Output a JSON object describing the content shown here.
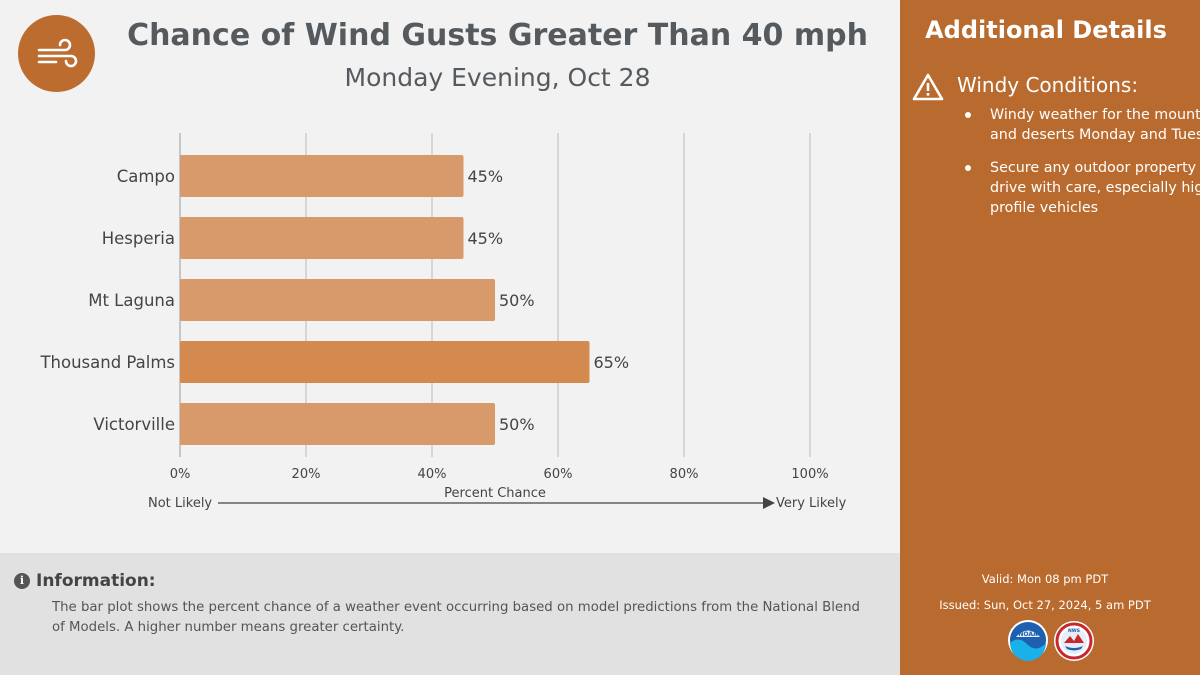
{
  "header": {
    "title": "Chance of Wind Gusts Greater Than 40 mph",
    "subtitle": "Monday Evening, Oct 28",
    "icon": "wind-icon"
  },
  "chart_data": {
    "type": "bar",
    "orientation": "horizontal",
    "categories": [
      "Campo",
      "Hesperia",
      "Mt Laguna",
      "Thousand Palms",
      "Victorville"
    ],
    "values": [
      45,
      45,
      50,
      65,
      50
    ],
    "value_labels": [
      "45%",
      "45%",
      "50%",
      "65%",
      "50%"
    ],
    "xlim": [
      0,
      100
    ],
    "xticks": [
      0,
      20,
      40,
      60,
      80,
      100
    ],
    "xtick_labels": [
      "0%",
      "20%",
      "40%",
      "60%",
      "80%",
      "100%"
    ],
    "xlabel": "Percent Chance",
    "scale_left": "Not Likely",
    "scale_right": "Very Likely",
    "grid": true,
    "bar_color": "#d89a6a",
    "highlight_color": "#d4894f",
    "highlight_index": 3
  },
  "info": {
    "heading": "Information:",
    "body": "The bar plot shows the percent chance of a weather event occurring based on model predictions from the National Blend of Models. A higher number means greater certainty."
  },
  "sidebar": {
    "title": "Additional Details",
    "condition_title": "Windy Conditions:",
    "bullets": [
      "Windy weather for the mountains and deserts Monday and Tuesday",
      "Secure any outdoor property and drive with care, especially high-profile vehicles"
    ],
    "valid": "Valid: Mon 08 pm PDT",
    "issued": "Issued: Sun, Oct 27, 2024, 5 am PDT",
    "logos": {
      "noaa": "NOAA",
      "nws": "NWS"
    }
  },
  "colors": {
    "accent": "#b96a2e",
    "panel_bg": "#f2f2f2",
    "info_bg": "#e1e1e1"
  }
}
